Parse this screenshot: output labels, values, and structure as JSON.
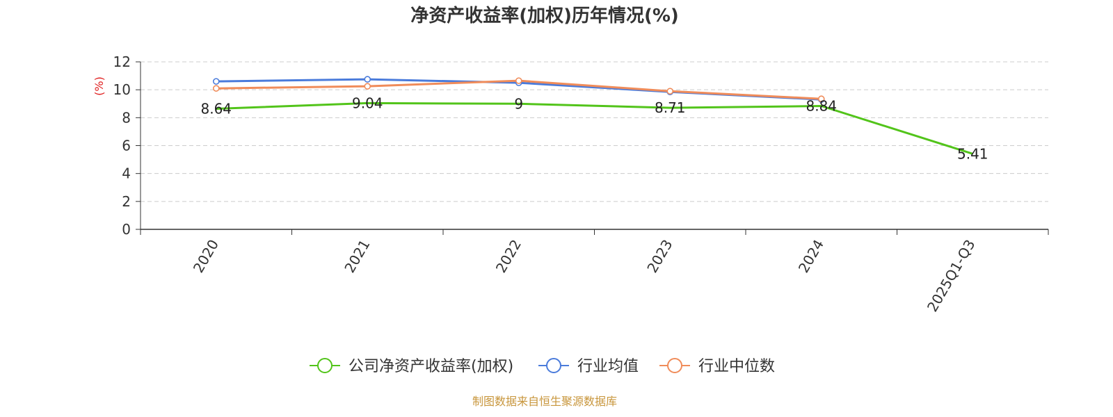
{
  "chart_data": {
    "type": "line",
    "title": "净资产收益率(加权)历年情况(%)",
    "ylabel": "(%)",
    "ylim": [
      0,
      12
    ],
    "yticks": [
      0,
      2,
      4,
      6,
      8,
      10,
      12
    ],
    "grid": true,
    "legend_position": "bottom",
    "categories": [
      "2020",
      "2021",
      "2022",
      "2023",
      "2024",
      "2025Q1-Q3"
    ],
    "series": [
      {
        "name": "公司净资产收益率(加权)",
        "color": "#52c41a",
        "values": [
          8.64,
          9.04,
          9,
          8.71,
          8.84,
          5.41
        ],
        "labels": [
          "8.64",
          "9.04",
          "9",
          "8.71",
          "8.84",
          "5.41"
        ]
      },
      {
        "name": "行业均值",
        "color": "#4a7bdb",
        "values": [
          10.6,
          10.75,
          10.5,
          9.85,
          9.3,
          null
        ]
      },
      {
        "name": "行业中位数",
        "color": "#f08c5a",
        "values": [
          10.1,
          10.25,
          10.65,
          9.9,
          9.35,
          null
        ]
      }
    ]
  },
  "axis_color": "#333333",
  "ylabel_color": "#e02020",
  "grid_color": "#cccccc",
  "source": {
    "text": "制图数据来自恒生聚源数据库",
    "color": "#c8963c"
  }
}
